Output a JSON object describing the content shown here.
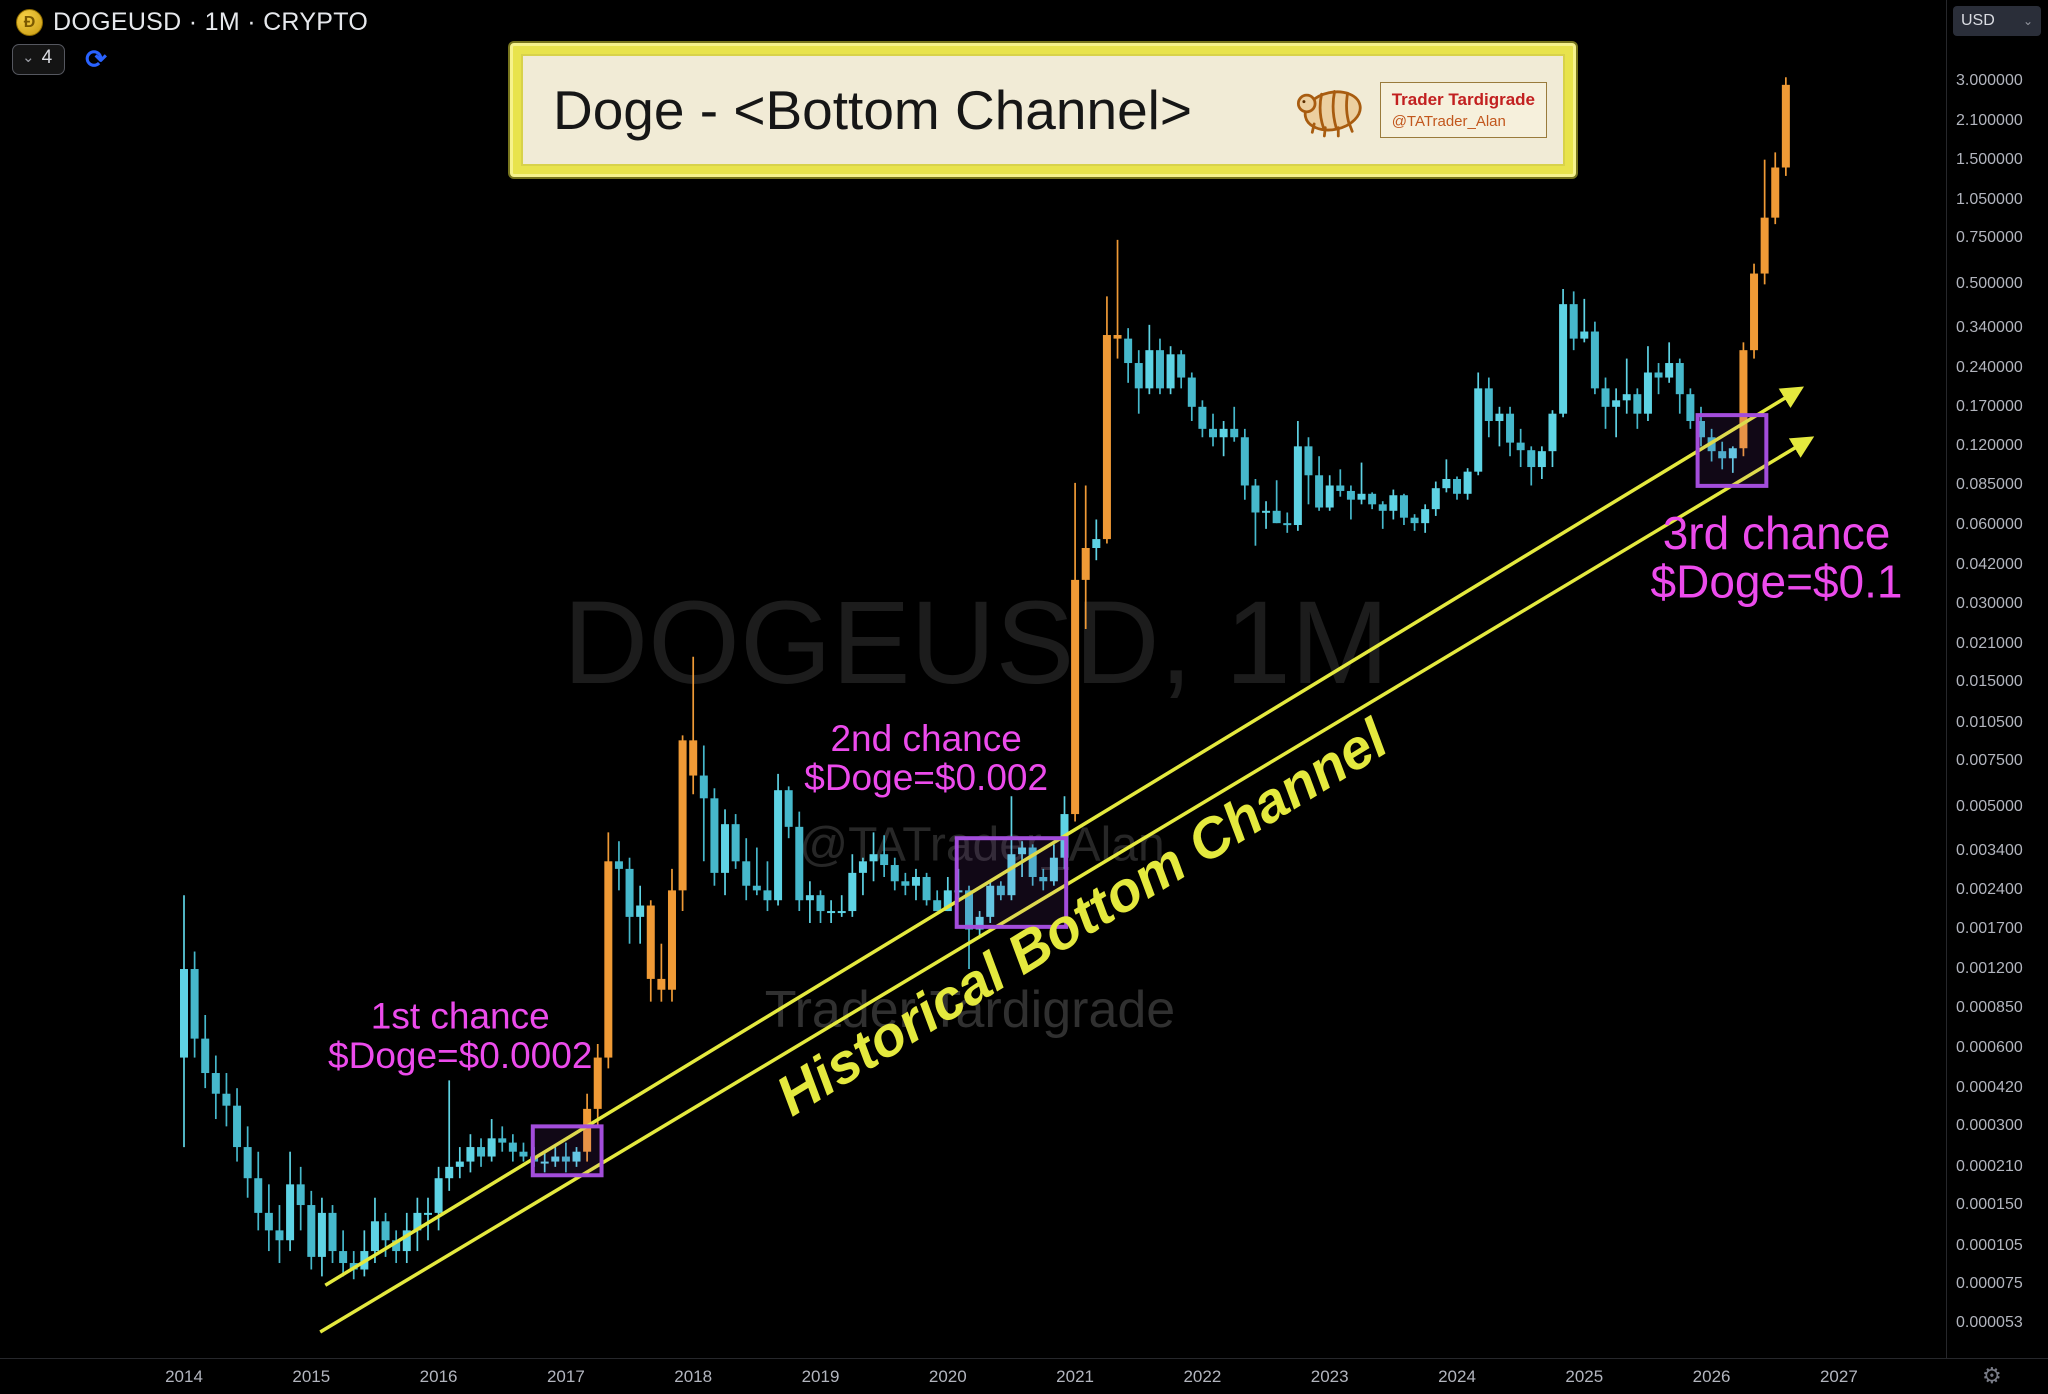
{
  "header": {
    "symbol_title": "DOGEUSD · 1M · CRYPTO",
    "interval_value": "4",
    "currency": "USD"
  },
  "icons": {
    "chevron_down": "⌄",
    "refresh": "⟳",
    "gear": "⚙",
    "doge_letter": "Ð"
  },
  "banner": {
    "title": "Doge - <Bottom Channel>",
    "logo_name": "Trader Tardigrade",
    "logo_handle": "@TATrader_Alan"
  },
  "watermark": {
    "line1": "DOGEUSD, 1M",
    "line2": "@TATrader_Alan",
    "line3": "Trader Tardigrade"
  },
  "colors": {
    "candle_up": "#5ed3e4",
    "candle_down": "#46b8cb",
    "candle_highlight": "#ef9a36",
    "channel_yellow": "#e4e93e",
    "callout_magenta": "#ec4bec",
    "box_purple": "#a34ddb",
    "axis_text": "#b2b5be"
  },
  "chart_data": {
    "type": "candlestick",
    "symbol": "DOGEUSD",
    "interval": "1M",
    "exchange": "CRYPTO",
    "y_axis": {
      "scale": "log",
      "labels": [
        "3.000000",
        "2.100000",
        "1.500000",
        "1.050000",
        "0.750000",
        "0.500000",
        "0.340000",
        "0.240000",
        "0.170000",
        "0.120000",
        "0.085000",
        "0.060000",
        "0.042000",
        "0.030000",
        "0.021000",
        "0.015000",
        "0.010500",
        "0.007500",
        "0.005000",
        "0.003400",
        "0.002400",
        "0.001700",
        "0.001200",
        "0.000850",
        "0.000600",
        "0.000420",
        "0.000300",
        "0.000210",
        "0.000150",
        "0.000105",
        "0.000075",
        "0.000053"
      ]
    },
    "x_axis": {
      "labels": [
        "2014",
        "2015",
        "2016",
        "2017",
        "2018",
        "2019",
        "2020",
        "2021",
        "2022",
        "2023",
        "2024",
        "2025",
        "2026",
        "2027"
      ]
    },
    "candles": [
      [
        "2014-01",
        0.00055,
        0.0023,
        0.00025,
        0.0012
      ],
      [
        "2014-02",
        0.0012,
        0.0014,
        0.00055,
        0.00065
      ],
      [
        "2014-03",
        0.00065,
        0.0008,
        0.00042,
        0.00048
      ],
      [
        "2014-04",
        0.00048,
        0.00056,
        0.00032,
        0.0004
      ],
      [
        "2014-05",
        0.0004,
        0.00048,
        0.0003,
        0.00036
      ],
      [
        "2014-06",
        0.00036,
        0.00042,
        0.00022,
        0.00025
      ],
      [
        "2014-07",
        0.00025,
        0.0003,
        0.00016,
        0.00019
      ],
      [
        "2014-08",
        0.00019,
        0.00024,
        0.00012,
        0.00014
      ],
      [
        "2014-09",
        0.00014,
        0.00018,
        0.0001,
        0.00012
      ],
      [
        "2014-10",
        0.00012,
        0.00015,
        9e-05,
        0.00011
      ],
      [
        "2014-11",
        0.00011,
        0.00024,
        0.0001,
        0.00018
      ],
      [
        "2014-12",
        0.00018,
        0.00021,
        0.00012,
        0.00015
      ],
      [
        "2015-01",
        0.00015,
        0.00017,
        8.5e-05,
        9.5e-05
      ],
      [
        "2015-02",
        9.5e-05,
        0.00016,
        8e-05,
        0.00014
      ],
      [
        "2015-03",
        0.00014,
        0.00015,
        9e-05,
        0.0001
      ],
      [
        "2015-04",
        0.0001,
        0.00012,
        8e-05,
        9e-05
      ],
      [
        "2015-05",
        9e-05,
        0.0001,
        7.8e-05,
        8.5e-05
      ],
      [
        "2015-06",
        8.5e-05,
        0.00012,
        8e-05,
        0.0001
      ],
      [
        "2015-07",
        0.0001,
        0.00016,
        9e-05,
        0.00013
      ],
      [
        "2015-08",
        0.00013,
        0.00014,
        9.5e-05,
        0.00011
      ],
      [
        "2015-09",
        0.00011,
        0.00012,
        9e-05,
        0.0001
      ],
      [
        "2015-10",
        0.0001,
        0.00014,
        9e-05,
        0.00012
      ],
      [
        "2015-11",
        0.00012,
        0.00016,
        0.0001,
        0.00014
      ],
      [
        "2015-12",
        0.00014,
        0.00016,
        0.00011,
        0.00014
      ],
      [
        "2016-01",
        0.00014,
        0.00021,
        0.00012,
        0.00019
      ],
      [
        "2016-02",
        0.00019,
        0.00045,
        0.00017,
        0.00021
      ],
      [
        "2016-03",
        0.00021,
        0.00025,
        0.00019,
        0.00022
      ],
      [
        "2016-04",
        0.00022,
        0.00028,
        0.0002,
        0.00025
      ],
      [
        "2016-05",
        0.00025,
        0.00027,
        0.00021,
        0.00023
      ],
      [
        "2016-06",
        0.00023,
        0.00032,
        0.00022,
        0.00027
      ],
      [
        "2016-07",
        0.00027,
        0.0003,
        0.00024,
        0.00026
      ],
      [
        "2016-08",
        0.00026,
        0.00028,
        0.00022,
        0.00024
      ],
      [
        "2016-09",
        0.00024,
        0.00026,
        0.00022,
        0.00023
      ],
      [
        "2016-10",
        0.00023,
        0.00025,
        0.00021,
        0.00022
      ],
      [
        "2016-11",
        0.00022,
        0.00024,
        0.0002,
        0.00022
      ],
      [
        "2016-12",
        0.00022,
        0.00025,
        0.00021,
        0.00023
      ],
      [
        "2017-01",
        0.00023,
        0.00026,
        0.0002,
        0.00022
      ],
      [
        "2017-02",
        0.00022,
        0.00025,
        0.00021,
        0.00024
      ],
      [
        "2017-03",
        0.00024,
        0.0004,
        0.00022,
        0.00035,
        "hl"
      ],
      [
        "2017-04",
        0.00035,
        0.00062,
        0.0003,
        0.00055,
        "hl"
      ],
      [
        "2017-05",
        0.00055,
        0.004,
        0.0005,
        0.0031,
        "hl"
      ],
      [
        "2017-06",
        0.0031,
        0.0037,
        0.0024,
        0.0029
      ],
      [
        "2017-07",
        0.0029,
        0.0032,
        0.0015,
        0.0019
      ],
      [
        "2017-08",
        0.0019,
        0.0025,
        0.0015,
        0.0021
      ],
      [
        "2017-09",
        0.0021,
        0.0022,
        0.0009,
        0.0011,
        "hl"
      ],
      [
        "2017-10",
        0.0011,
        0.0015,
        0.0009,
        0.001,
        "hl"
      ],
      [
        "2017-11",
        0.001,
        0.0029,
        0.0009,
        0.0024,
        "hl"
      ],
      [
        "2017-12",
        0.0024,
        0.0094,
        0.002,
        0.009,
        "hl"
      ],
      [
        "2018-01",
        0.009,
        0.0188,
        0.0056,
        0.0066,
        "hl"
      ],
      [
        "2018-02",
        0.0066,
        0.0086,
        0.0031,
        0.0054
      ],
      [
        "2018-03",
        0.0054,
        0.0059,
        0.0025,
        0.0028
      ],
      [
        "2018-04",
        0.0028,
        0.0049,
        0.0023,
        0.0043
      ],
      [
        "2018-05",
        0.0043,
        0.0047,
        0.0029,
        0.0031
      ],
      [
        "2018-06",
        0.0031,
        0.0038,
        0.0022,
        0.0025
      ],
      [
        "2018-07",
        0.0025,
        0.0035,
        0.0023,
        0.0024
      ],
      [
        "2018-08",
        0.0024,
        0.0031,
        0.002,
        0.0022
      ],
      [
        "2018-09",
        0.0022,
        0.0067,
        0.0021,
        0.0058
      ],
      [
        "2018-10",
        0.0058,
        0.006,
        0.0038,
        0.0042
      ],
      [
        "2018-11",
        0.0042,
        0.0048,
        0.002,
        0.0022
      ],
      [
        "2018-12",
        0.0022,
        0.0026,
        0.0018,
        0.0023
      ],
      [
        "2019-01",
        0.0023,
        0.0024,
        0.0018,
        0.002
      ],
      [
        "2019-02",
        0.002,
        0.0022,
        0.0018,
        0.002
      ],
      [
        "2019-03",
        0.002,
        0.0023,
        0.0019,
        0.002
      ],
      [
        "2019-04",
        0.002,
        0.0033,
        0.0019,
        0.0028
      ],
      [
        "2019-05",
        0.0028,
        0.0032,
        0.0023,
        0.0031
      ],
      [
        "2019-06",
        0.0031,
        0.004,
        0.0026,
        0.0033
      ],
      [
        "2019-07",
        0.0033,
        0.0039,
        0.0027,
        0.003
      ],
      [
        "2019-08",
        0.003,
        0.0032,
        0.0024,
        0.0026
      ],
      [
        "2019-09",
        0.0026,
        0.0028,
        0.0023,
        0.0025
      ],
      [
        "2019-10",
        0.0025,
        0.0029,
        0.0022,
        0.0027
      ],
      [
        "2019-11",
        0.0027,
        0.0028,
        0.0021,
        0.0022
      ],
      [
        "2019-12",
        0.0022,
        0.0024,
        0.002,
        0.002
      ],
      [
        "2020-01",
        0.002,
        0.0027,
        0.002,
        0.0024
      ],
      [
        "2020-02",
        0.0024,
        0.0029,
        0.0022,
        0.0024
      ],
      [
        "2020-03",
        0.0024,
        0.0025,
        0.0012,
        0.0017
      ],
      [
        "2020-04",
        0.0017,
        0.002,
        0.0016,
        0.0019
      ],
      [
        "2020-05",
        0.0019,
        0.0026,
        0.0018,
        0.0025
      ],
      [
        "2020-06",
        0.0025,
        0.0026,
        0.0022,
        0.0023
      ],
      [
        "2020-07",
        0.0023,
        0.0055,
        0.0022,
        0.0033
      ],
      [
        "2020-08",
        0.0033,
        0.0037,
        0.0027,
        0.0035
      ],
      [
        "2020-09",
        0.0035,
        0.0036,
        0.0025,
        0.0027
      ],
      [
        "2020-10",
        0.0027,
        0.0029,
        0.0024,
        0.0026
      ],
      [
        "2020-11",
        0.0026,
        0.0036,
        0.0025,
        0.0032
      ],
      [
        "2020-12",
        0.0032,
        0.0055,
        0.0029,
        0.0047
      ],
      [
        "2021-01",
        0.0047,
        0.087,
        0.0044,
        0.037,
        "hl"
      ],
      [
        "2021-02",
        0.037,
        0.085,
        0.024,
        0.049,
        "hl"
      ],
      [
        "2021-03",
        0.049,
        0.063,
        0.044,
        0.053
      ],
      [
        "2021-04",
        0.053,
        0.45,
        0.051,
        0.32,
        "hl"
      ],
      [
        "2021-05",
        0.32,
        0.74,
        0.26,
        0.31,
        "hl"
      ],
      [
        "2021-06",
        0.31,
        0.34,
        0.21,
        0.25
      ],
      [
        "2021-07",
        0.25,
        0.28,
        0.16,
        0.2
      ],
      [
        "2021-08",
        0.2,
        0.35,
        0.19,
        0.28
      ],
      [
        "2021-09",
        0.28,
        0.31,
        0.19,
        0.2
      ],
      [
        "2021-10",
        0.2,
        0.29,
        0.19,
        0.27
      ],
      [
        "2021-11",
        0.27,
        0.28,
        0.2,
        0.22
      ],
      [
        "2021-12",
        0.22,
        0.23,
        0.15,
        0.17
      ],
      [
        "2022-01",
        0.17,
        0.18,
        0.13,
        0.14
      ],
      [
        "2022-02",
        0.14,
        0.16,
        0.12,
        0.13
      ],
      [
        "2022-03",
        0.13,
        0.15,
        0.11,
        0.14
      ],
      [
        "2022-04",
        0.14,
        0.17,
        0.125,
        0.13
      ],
      [
        "2022-05",
        0.13,
        0.14,
        0.075,
        0.085
      ],
      [
        "2022-06",
        0.085,
        0.09,
        0.05,
        0.067
      ],
      [
        "2022-07",
        0.067,
        0.074,
        0.058,
        0.068
      ],
      [
        "2022-08",
        0.068,
        0.089,
        0.061,
        0.061
      ],
      [
        "2022-09",
        0.061,
        0.067,
        0.056,
        0.06
      ],
      [
        "2022-10",
        0.06,
        0.15,
        0.057,
        0.12
      ],
      [
        "2022-11",
        0.12,
        0.13,
        0.072,
        0.093
      ],
      [
        "2022-12",
        0.093,
        0.11,
        0.068,
        0.07
      ],
      [
        "2023-01",
        0.07,
        0.093,
        0.068,
        0.085
      ],
      [
        "2023-02",
        0.085,
        0.098,
        0.077,
        0.081
      ],
      [
        "2023-03",
        0.081,
        0.085,
        0.063,
        0.075
      ],
      [
        "2023-04",
        0.075,
        0.104,
        0.072,
        0.079
      ],
      [
        "2023-05",
        0.079,
        0.08,
        0.069,
        0.072
      ],
      [
        "2023-06",
        0.072,
        0.074,
        0.058,
        0.068
      ],
      [
        "2023-07",
        0.068,
        0.082,
        0.063,
        0.078
      ],
      [
        "2023-08",
        0.078,
        0.079,
        0.06,
        0.064
      ],
      [
        "2023-09",
        0.064,
        0.066,
        0.057,
        0.061
      ],
      [
        "2023-10",
        0.061,
        0.072,
        0.056,
        0.069
      ],
      [
        "2023-11",
        0.069,
        0.088,
        0.065,
        0.083
      ],
      [
        "2023-12",
        0.083,
        0.107,
        0.08,
        0.09
      ],
      [
        "2024-01",
        0.09,
        0.092,
        0.075,
        0.079
      ],
      [
        "2024-02",
        0.079,
        0.099,
        0.075,
        0.096
      ],
      [
        "2024-03",
        0.096,
        0.23,
        0.093,
        0.2
      ],
      [
        "2024-04",
        0.2,
        0.22,
        0.13,
        0.15
      ],
      [
        "2024-05",
        0.15,
        0.17,
        0.12,
        0.16
      ],
      [
        "2024-06",
        0.16,
        0.17,
        0.11,
        0.124
      ],
      [
        "2024-07",
        0.124,
        0.14,
        0.1,
        0.116
      ],
      [
        "2024-08",
        0.116,
        0.12,
        0.085,
        0.1
      ],
      [
        "2024-09",
        0.1,
        0.12,
        0.09,
        0.115
      ],
      [
        "2024-10",
        0.115,
        0.165,
        0.1,
        0.16
      ],
      [
        "2024-11",
        0.16,
        0.48,
        0.155,
        0.42
      ],
      [
        "2024-12",
        0.42,
        0.47,
        0.28,
        0.31
      ],
      [
        "2025-01",
        0.31,
        0.44,
        0.3,
        0.33
      ],
      [
        "2025-02",
        0.33,
        0.36,
        0.19,
        0.2
      ],
      [
        "2025-03",
        0.2,
        0.22,
        0.14,
        0.17
      ],
      [
        "2025-04",
        0.17,
        0.2,
        0.13,
        0.18
      ],
      [
        "2025-05",
        0.18,
        0.26,
        0.16,
        0.19
      ],
      [
        "2025-06",
        0.19,
        0.2,
        0.14,
        0.16
      ],
      [
        "2025-07",
        0.16,
        0.29,
        0.15,
        0.23
      ],
      [
        "2025-08",
        0.23,
        0.25,
        0.19,
        0.22
      ],
      [
        "2025-09",
        0.22,
        0.3,
        0.21,
        0.25
      ],
      [
        "2025-10",
        0.25,
        0.26,
        0.16,
        0.19
      ],
      [
        "2025-11",
        0.19,
        0.2,
        0.14,
        0.15
      ],
      [
        "2025-12",
        0.15,
        0.17,
        0.12,
        0.13
      ],
      [
        "2026-01",
        0.13,
        0.14,
        0.105,
        0.115
      ],
      [
        "2026-02",
        0.115,
        0.125,
        0.098,
        0.108
      ],
      [
        "2026-03",
        0.108,
        0.12,
        0.095,
        0.118
      ],
      [
        "2026-04",
        0.118,
        0.3,
        0.11,
        0.28,
        "hl"
      ],
      [
        "2026-05",
        0.28,
        0.6,
        0.26,
        0.55,
        "hl"
      ],
      [
        "2026-06",
        0.55,
        1.5,
        0.5,
        0.9,
        "hl"
      ],
      [
        "2026-07",
        0.9,
        1.6,
        0.85,
        1.4,
        "hl"
      ],
      [
        "2026-08",
        1.4,
        3.1,
        1.3,
        2.9,
        "hl"
      ]
    ],
    "annotations": {
      "channel": {
        "label": "Historical Bottom Channel",
        "color": "#e4e93e",
        "label_anchor": {
          "year": 2021.13,
          "price": 0.00164,
          "angle": -31.5
        },
        "lines": [
          {
            "from": {
              "year": 2015.11,
              "price": 7.4e-05
            },
            "to": {
              "year": 2026.68,
              "price": 0.197
            }
          },
          {
            "from": {
              "year": 2015.07,
              "price": 4.9e-05
            },
            "to": {
              "year": 2026.76,
              "price": 0.127
            }
          }
        ]
      },
      "boxes": [
        {
          "from_year": 2016.74,
          "to_year": 2017.28,
          "price_top": 0.0003,
          "price_bottom": 0.000195
        },
        {
          "from_year": 2020.07,
          "to_year": 2020.93,
          "price_top": 0.0038,
          "price_bottom": 0.00174
        },
        {
          "from_year": 2025.89,
          "to_year": 2026.43,
          "price_top": 0.158,
          "price_bottom": 0.0847
        }
      ],
      "callouts": [
        {
          "lines": [
            "1st chance",
            "$Doge=$0.0002"
          ],
          "year": 2016.17,
          "price": 0.00071,
          "size": 37
        },
        {
          "lines": [
            "2nd chance",
            "$Doge=$0.002"
          ],
          "year": 2019.83,
          "price": 0.0082,
          "size": 37
        },
        {
          "lines": [
            "3rd chance",
            "$Doge=$0.1"
          ],
          "year": 2026.51,
          "price": 0.0486,
          "size": 46
        }
      ]
    }
  }
}
